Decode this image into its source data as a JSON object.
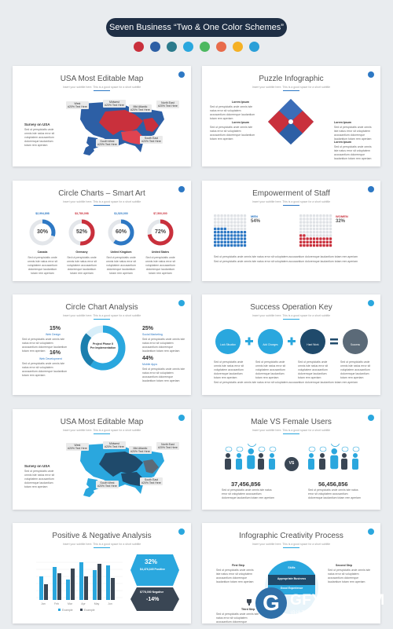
{
  "banner": "Seven Business “Two & One Color Schemes”",
  "scheme_colors": [
    "#c9303c",
    "#2d5fa5",
    "#2b7a8c",
    "#2aa7de",
    "#4cb860",
    "#e86b4b",
    "#f5b125",
    "#2a9fd8"
  ],
  "subtitle": "Insert your subtitle here. This is a good space for a short subtitle",
  "lorem_short": "Lorem Ipsum",
  "lorem_para": "Sed ut perspiciatis unde omnis iste natus error sit voluptatem accusantium doloremque laudantium totam rem aperiam",
  "slide1": {
    "title": "USA Most Editable Map",
    "survey": "Survey on USA",
    "tags": [
      {
        "region": "West",
        "pct": "#20% Text Here"
      },
      {
        "region": "Midwest",
        "pct": "#20% Text Here"
      },
      {
        "region": "Mid Atlantic",
        "pct": "#20% Text Here"
      },
      {
        "region": "North East",
        "pct": "#20% Text Here"
      },
      {
        "region": "South West",
        "pct": "#20% Text Here"
      },
      {
        "region": "South East",
        "pct": "#20% Text Here"
      }
    ]
  },
  "slide2": {
    "title": "Puzzle Infographic"
  },
  "slide3": {
    "title": "Circle Charts – Smart Art",
    "charts": [
      {
        "value": "$2,994,898",
        "pct": "30%",
        "country": "Canada",
        "percent": 30,
        "color": "#2d78c4"
      },
      {
        "value": "$3,780,098",
        "pct": "52%",
        "country": "Germany",
        "percent": 52,
        "color": "#c9303c"
      },
      {
        "value": "$1,520,000",
        "pct": "60%",
        "country": "United Kingdom",
        "percent": 60,
        "color": "#2d78c4"
      },
      {
        "value": "$7,500,000",
        "pct": "72%",
        "country": "United States",
        "percent": 72,
        "color": "#c9303c"
      }
    ]
  },
  "slide4": {
    "title": "Empowerment of Staff",
    "left": {
      "label": "MEN",
      "pct": "54%",
      "fraction": 0.54
    },
    "right": {
      "label": "WOMEN",
      "pct": "32%",
      "fraction": 0.32
    }
  },
  "slide5": {
    "title": "Circle Chart Analysis",
    "center": "Project Phase II\nPre Implementation",
    "items": [
      {
        "pct": "15%",
        "label": "Web Design"
      },
      {
        "pct": "16%",
        "label": "Web Development"
      },
      {
        "pct": "25%",
        "label": "Social Marketing"
      },
      {
        "pct": "44%",
        "label": "Mobile Apps"
      }
    ]
  },
  "slide6": {
    "title": "Success Operation Key",
    "steps": [
      "Lock Situation",
      "Add Changes",
      "Hard Work",
      "Success"
    ]
  },
  "slide7": {
    "title": "USA Most Editable Map",
    "survey": "Survey on USA"
  },
  "slide8": {
    "title": "Male VS Female Users",
    "vs": "VS",
    "male": "37,456,856",
    "female": "56,456,856"
  },
  "slide9": {
    "title": "Positive & Negative Analysis",
    "positive_pct": "32%",
    "positive_label": "$4,476,345 Positive",
    "negative_label": "$778,000 Negative",
    "negative_pct": "-14%",
    "months": [
      "Jan",
      "Feb",
      "Mar",
      "Apr",
      "May",
      "Jun"
    ],
    "legend": [
      "Example",
      "Example"
    ]
  },
  "slide10": {
    "title": "Infographic Creativity Process",
    "center_items": [
      "Skills",
      "Appropriate Business",
      "Good Experience"
    ],
    "steps": [
      "First Step",
      "Second Step",
      "Third Step"
    ]
  },
  "watermark": {
    "letter": "G",
    "name": "GFXAA.COM",
    "tagline": "设计互联网资源分享"
  }
}
